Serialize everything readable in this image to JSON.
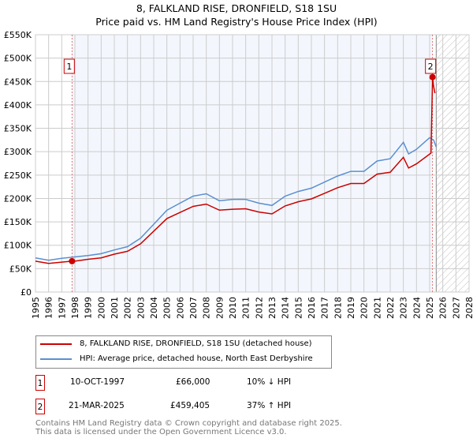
{
  "chart_data": {
    "type": "line",
    "title": "8, FALKLAND RISE, DRONFIELD, S18 1SU",
    "subtitle": "Price paid vs. HM Land Registry's House Price Index (HPI)",
    "xlim": [
      1995,
      2028
    ],
    "ylim": [
      0,
      550000
    ],
    "x_ticks": [
      "1995",
      "1996",
      "1997",
      "1998",
      "1999",
      "2000",
      "2001",
      "2002",
      "2003",
      "2004",
      "2005",
      "2006",
      "2007",
      "2008",
      "2009",
      "2010",
      "2011",
      "2012",
      "2013",
      "2014",
      "2015",
      "2016",
      "2017",
      "2018",
      "2019",
      "2020",
      "2021",
      "2022",
      "2023",
      "2024",
      "2025",
      "2026",
      "2027",
      "2028"
    ],
    "y_ticks": [
      {
        "v": 0,
        "label": "£0"
      },
      {
        "v": 50000,
        "label": "£50K"
      },
      {
        "v": 100000,
        "label": "£100K"
      },
      {
        "v": 150000,
        "label": "£150K"
      },
      {
        "v": 200000,
        "label": "£200K"
      },
      {
        "v": 250000,
        "label": "£250K"
      },
      {
        "v": 300000,
        "label": "£300K"
      },
      {
        "v": 350000,
        "label": "£350K"
      },
      {
        "v": 400000,
        "label": "£400K"
      },
      {
        "v": 450000,
        "label": "£450K"
      },
      {
        "v": 500000,
        "label": "£500K"
      },
      {
        "v": 550000,
        "label": "£550K"
      }
    ],
    "shaded_range": [
      1997.78,
      2025.22
    ],
    "forecast_hatch_from": 2025.5,
    "series": [
      {
        "name": "8, FALKLAND RISE, DRONFIELD, S18 1SU (detached house)",
        "color": "#cc0000",
        "x": [
          1995,
          1996,
          1997,
          1997.78,
          1998,
          1999,
          2000,
          2001,
          2002,
          2003,
          2004,
          2005,
          2006,
          2007,
          2008,
          2009,
          2010,
          2011,
          2012,
          2013,
          2014,
          2015,
          2016,
          2017,
          2018,
          2019,
          2020,
          2021,
          2022,
          2023,
          2023.4,
          2024,
          2025.1,
          2025.22,
          2025.3,
          2025.4
        ],
        "y": [
          66000,
          61000,
          64000,
          66000,
          66000,
          70000,
          73000,
          81000,
          87000,
          103000,
          130000,
          157000,
          170000,
          183000,
          188000,
          175000,
          177000,
          178000,
          171000,
          167000,
          184000,
          193000,
          199000,
          211000,
          223000,
          232000,
          232000,
          252000,
          256000,
          288000,
          265000,
          274000,
          297000,
          459405,
          440000,
          425000
        ]
      },
      {
        "name": "HPI: Average price, detached house, North East Derbyshire",
        "color": "#5b8fd0",
        "x": [
          1995,
          1996,
          1997,
          1998,
          1999,
          2000,
          2001,
          2002,
          2003,
          2004,
          2005,
          2006,
          2007,
          2008,
          2009,
          2010,
          2011,
          2012,
          2013,
          2014,
          2015,
          2016,
          2017,
          2018,
          2019,
          2020,
          2021,
          2022,
          2023,
          2023.4,
          2024,
          2025,
          2025.3,
          2025.5
        ],
        "y": [
          73000,
          68000,
          72000,
          75000,
          78000,
          82000,
          90000,
          97000,
          115000,
          145000,
          175000,
          190000,
          205000,
          210000,
          195000,
          198000,
          198000,
          190000,
          185000,
          205000,
          215000,
          222000,
          235000,
          248000,
          258000,
          258000,
          280000,
          285000,
          320000,
          295000,
          305000,
          330000,
          325000,
          310000
        ]
      }
    ],
    "markers": [
      {
        "label": "1",
        "x": 1997.78,
        "y": 66000
      },
      {
        "label": "2",
        "x": 2025.22,
        "y": 459405
      }
    ]
  },
  "sales": [
    {
      "num": "1",
      "date": "10-OCT-1997",
      "price": "£66,000",
      "hpi": "10% ↓ HPI"
    },
    {
      "num": "2",
      "date": "21-MAR-2025",
      "price": "£459,405",
      "hpi": "37% ↑ HPI"
    }
  ],
  "footer": {
    "line1": "Contains HM Land Registry data © Crown copyright and database right 2025.",
    "line2": "This data is licensed under the Open Government Licence v3.0."
  }
}
